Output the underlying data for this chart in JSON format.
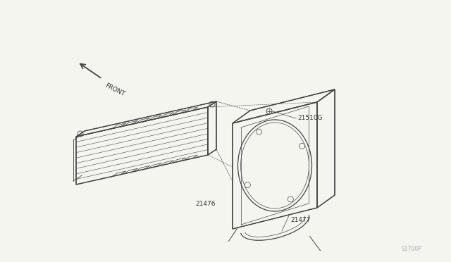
{
  "bg_color": "#f5f5f0",
  "line_color": "#444444",
  "text_color": "#333333",
  "watermark": "S1700P",
  "lw": 0.9
}
